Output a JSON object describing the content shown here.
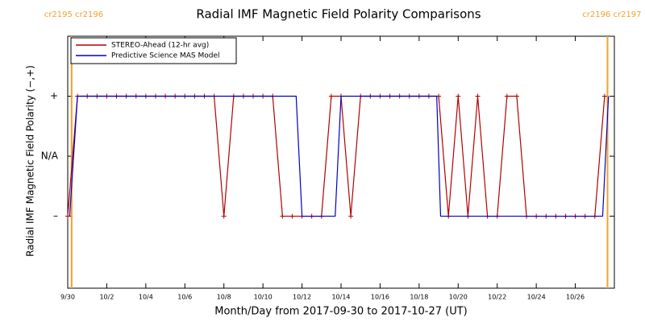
{
  "chart_data": {
    "type": "line",
    "title": "Radial IMF Magnetic Field Polarity Comparisons",
    "x_label": "Month/Day from 2017-09-30 to 2017-10-27 (UT)",
    "y_label": "Radial IMF Magnetic Field Polarity (−,+)",
    "xlim": [
      0,
      28
    ],
    "ylim": [
      -2.2,
      2
    ],
    "xticks": [
      {
        "value": 0,
        "label": "9/30"
      },
      {
        "value": 2,
        "label": "10/2"
      },
      {
        "value": 4,
        "label": "10/4"
      },
      {
        "value": 6,
        "label": "10/6"
      },
      {
        "value": 8,
        "label": "10/8"
      },
      {
        "value": 10,
        "label": "10/10"
      },
      {
        "value": 12,
        "label": "10/12"
      },
      {
        "value": 14,
        "label": "10/14"
      },
      {
        "value": 16,
        "label": "10/16"
      },
      {
        "value": 18,
        "label": "10/18"
      },
      {
        "value": 20,
        "label": "10/20"
      },
      {
        "value": 22,
        "label": "10/22"
      },
      {
        "value": 24,
        "label": "10/24"
      },
      {
        "value": 26,
        "label": "10/26"
      }
    ],
    "yticks": [
      {
        "value": 1,
        "label": "+"
      },
      {
        "value": 0,
        "label": "N/A"
      },
      {
        "value": -1,
        "label": "–"
      }
    ],
    "legend": "upper left",
    "series": [
      {
        "name": "STEREO-Ahead (12-hr avg)",
        "color": "#b40000",
        "marker": "+",
        "x": [
          0,
          0.5,
          1,
          1.5,
          2,
          2.5,
          3,
          3.5,
          4,
          4.5,
          5,
          5.5,
          6,
          6.5,
          7,
          7.5,
          8,
          8.5,
          9,
          9.5,
          10,
          10.5,
          11,
          11.5,
          12,
          12.5,
          13,
          13.5,
          14,
          14.5,
          15,
          15.5,
          16,
          16.5,
          17,
          17.5,
          18,
          18.5,
          19,
          19.5,
          20,
          20.5,
          21,
          21.5,
          22,
          22.5,
          23,
          23.5,
          24,
          24.5,
          25,
          25.5,
          26,
          26.5,
          27,
          27.5
        ],
        "values": [
          -1,
          1,
          1,
          1,
          1,
          1,
          1,
          1,
          1,
          1,
          1,
          1,
          1,
          1,
          1,
          1,
          -1,
          1,
          1,
          1,
          1,
          1,
          -1,
          -1,
          -1,
          -1,
          -1,
          1,
          1,
          -1,
          1,
          1,
          1,
          1,
          1,
          1,
          1,
          1,
          1,
          -1,
          1,
          -1,
          1,
          -1,
          -1,
          1,
          1,
          -1,
          -1,
          -1,
          -1,
          -1,
          -1,
          -1,
          -1,
          1
        ]
      },
      {
        "name": "Predictive Science MAS Model",
        "color": "#0000c8",
        "x": [
          0.1,
          0.5,
          11.7,
          12.0,
          13.7,
          14.0,
          18.9,
          19.1,
          27.4,
          27.7
        ],
        "values": [
          -1,
          1,
          1,
          -1,
          -1,
          1,
          1,
          -1,
          -1,
          1
        ]
      }
    ],
    "annotations": [
      {
        "x": 0.2,
        "label": "cr2195 cr2196"
      },
      {
        "x": 27.65,
        "label": "cr2196 cr2197"
      }
    ],
    "annotation_color": "#f5a028"
  }
}
